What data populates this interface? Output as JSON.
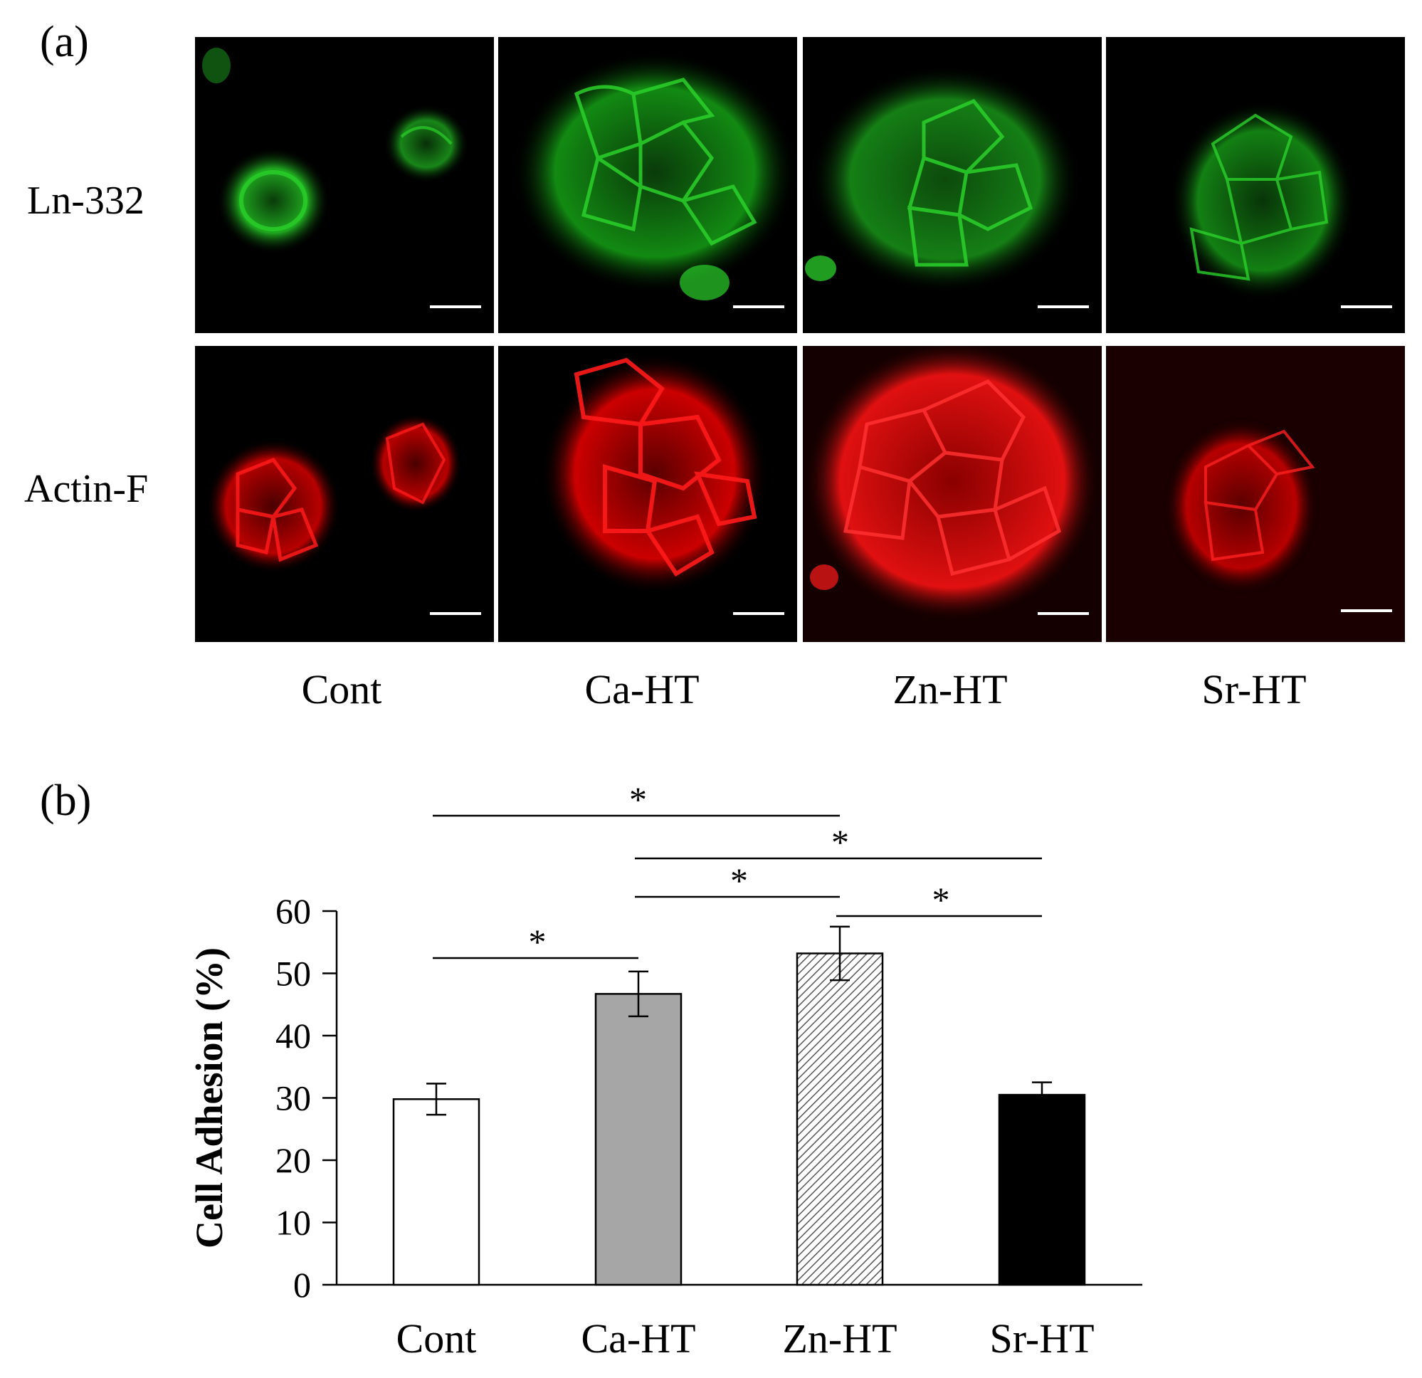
{
  "panel_a": {
    "label": "(a)",
    "row_labels": [
      "Ln-332",
      "Actin-F"
    ],
    "column_labels": [
      "Cont",
      "Ca-HT",
      "Zn-HT",
      "Sr-HT"
    ]
  },
  "panel_b": {
    "label": "(b)"
  },
  "colors": {
    "ln332_stain": "#2bd12b",
    "actin_stain": "#ff1a1a",
    "background": "#000000",
    "bar_cont": "#ffffff",
    "bar_ca": "#a6a6a6",
    "bar_zn": "#e0e0e0",
    "bar_sr": "#000000"
  },
  "chart_data": {
    "type": "bar",
    "categories": [
      "Cont",
      "Ca-HT",
      "Zn-HT",
      "Sr-HT"
    ],
    "values": [
      29.8,
      46.7,
      53.2,
      30.5
    ],
    "errors": [
      2.5,
      3.6,
      4.3,
      2.0
    ],
    "bar_fills": [
      "white",
      "gray",
      "hatched",
      "black"
    ],
    "ylabel": "Cell Adhesion (%)",
    "xlabel": "",
    "ylim": [
      0,
      60
    ],
    "yticks": [
      0,
      10,
      20,
      30,
      40,
      50,
      60
    ],
    "grid": false,
    "significance": [
      {
        "from": "Cont",
        "to": "Ca-HT",
        "label": "*"
      },
      {
        "from": "Ca-HT",
        "to": "Zn-HT",
        "label": "*"
      },
      {
        "from": "Zn-HT",
        "to": "Sr-HT",
        "label": "*"
      },
      {
        "from": "Cont",
        "to": "Zn-HT",
        "label": "*"
      },
      {
        "from": "Ca-HT",
        "to": "Sr-HT",
        "label": "*"
      }
    ]
  }
}
